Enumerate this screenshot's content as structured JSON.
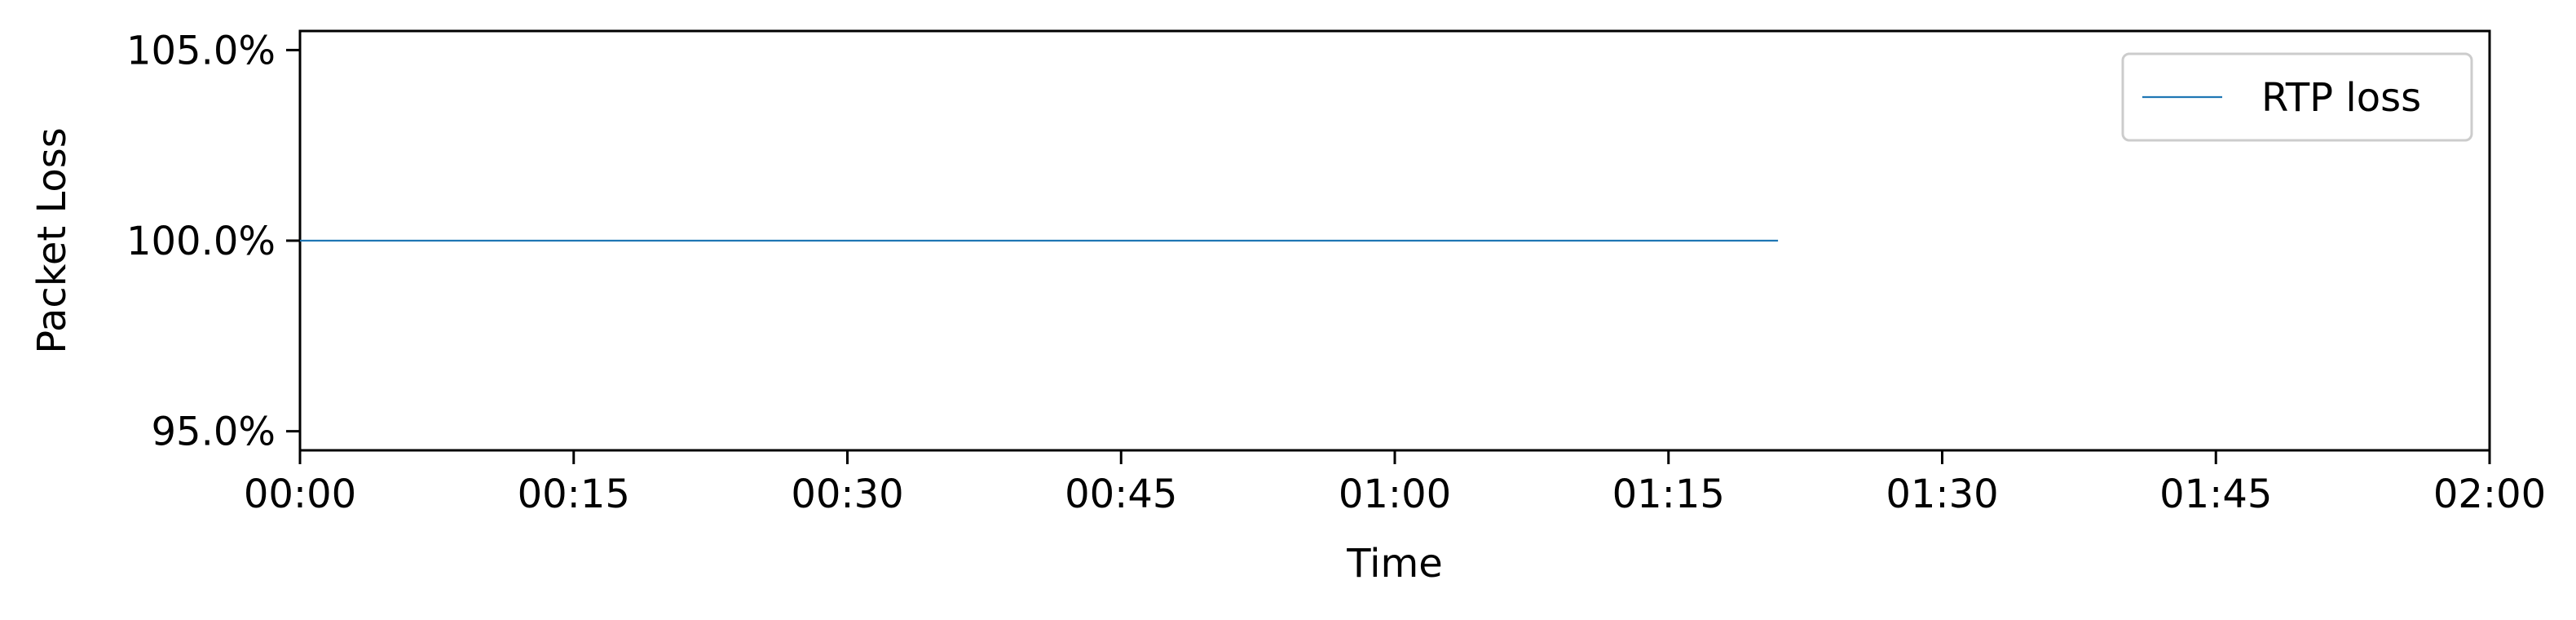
{
  "chart_data": {
    "type": "line",
    "xlabel": "Time",
    "ylabel": "Packet Loss",
    "x_unit": "mm:ss",
    "xlim": [
      "00:00",
      "02:00"
    ],
    "ylim": [
      94.5,
      105.5
    ],
    "x_ticks": [
      "00:00",
      "00:15",
      "00:30",
      "00:45",
      "01:00",
      "01:15",
      "01:30",
      "01:45",
      "02:00"
    ],
    "y_ticks": [
      {
        "value": 95.0,
        "label": "95.0%"
      },
      {
        "value": 100.0,
        "label": "100.0%"
      },
      {
        "value": 105.0,
        "label": "105.0%"
      }
    ],
    "grid": false,
    "legend_position": "top-right",
    "series": [
      {
        "name": "RTP loss",
        "color": "#1f77b4",
        "x": [
          "00:00",
          "01:21"
        ],
        "y": [
          100.0,
          100.0
        ]
      }
    ]
  }
}
